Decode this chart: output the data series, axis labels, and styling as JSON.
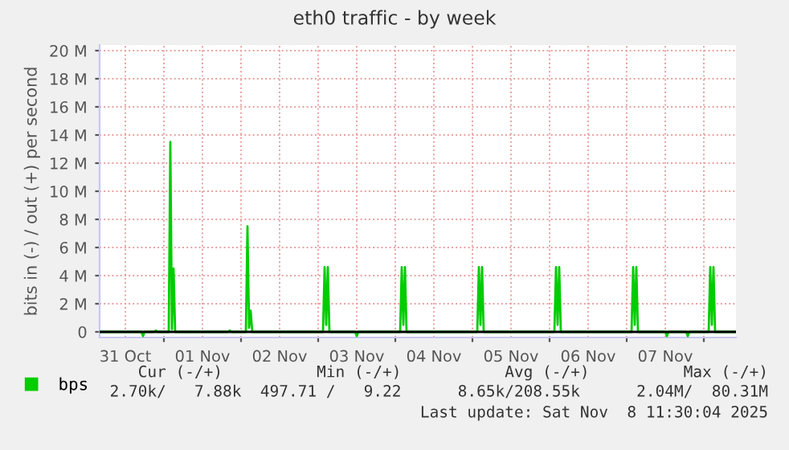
{
  "chart_data": {
    "type": "line",
    "title": "eth0 traffic - by week",
    "ylabel": "bits in (-) / out (+) per second",
    "x": [
      "2025-10-31T04:00",
      "2025-10-31T17:00",
      "2025-10-31T17:30",
      "2025-10-31T18:00",
      "2025-10-31T21:00",
      "2025-10-31T21:30",
      "2025-10-31T22:00",
      "2025-11-01T01:30",
      "2025-11-01T02:00",
      "2025-11-01T02:30",
      "2025-11-01T03:00",
      "2025-11-01T03:30",
      "2025-11-01T20:00",
      "2025-11-01T20:30",
      "2025-11-01T21:00",
      "2025-11-02T01:30",
      "2025-11-02T02:00",
      "2025-11-02T02:30",
      "2025-11-02T03:00",
      "2025-11-02T03:30",
      "2025-11-03T01:30",
      "2025-11-03T02:00",
      "2025-11-03T02:30",
      "2025-11-03T03:00",
      "2025-11-03T03:30",
      "2025-11-03T11:30",
      "2025-11-03T12:00",
      "2025-11-03T12:30",
      "2025-11-04T01:30",
      "2025-11-04T02:00",
      "2025-11-04T02:30",
      "2025-11-04T03:00",
      "2025-11-04T03:30",
      "2025-11-05T01:30",
      "2025-11-05T02:00",
      "2025-11-05T02:30",
      "2025-11-05T03:00",
      "2025-11-05T03:30",
      "2025-11-06T01:30",
      "2025-11-06T02:00",
      "2025-11-06T02:30",
      "2025-11-06T03:00",
      "2025-11-06T03:30",
      "2025-11-07T01:30",
      "2025-11-07T02:00",
      "2025-11-07T02:30",
      "2025-11-07T03:00",
      "2025-11-07T03:30",
      "2025-11-07T12:00",
      "2025-11-07T12:30",
      "2025-11-07T13:00",
      "2025-11-07T18:30",
      "2025-11-07T19:00",
      "2025-11-07T19:30",
      "2025-11-08T01:30",
      "2025-11-08T02:00",
      "2025-11-08T02:30",
      "2025-11-08T03:00",
      "2025-11-08T03:30",
      "2025-11-08T10:00"
    ],
    "series": [
      {
        "name": "bps",
        "color": "#00cc00",
        "values": [
          0,
          0,
          -300000,
          0,
          0,
          100000,
          0,
          0,
          13500000,
          200000,
          4500000,
          0,
          0,
          100000,
          0,
          0,
          7500000,
          300000,
          1500000,
          0,
          0,
          4600000,
          500000,
          4600000,
          0,
          0,
          -300000,
          0,
          0,
          4600000,
          500000,
          4600000,
          0,
          0,
          4600000,
          500000,
          4600000,
          0,
          0,
          4600000,
          500000,
          4600000,
          0,
          0,
          4600000,
          500000,
          4600000,
          0,
          0,
          -300000,
          0,
          0,
          -300000,
          0,
          0,
          4600000,
          500000,
          4600000,
          0,
          0
        ]
      }
    ],
    "xlim": [
      "2025-10-31T04:00",
      "2025-11-08T10:00"
    ],
    "xticks": [
      {
        "value": "2025-10-31T12:00",
        "label": "31 Oct"
      },
      {
        "value": "2025-11-01T00:00",
        "label": null
      },
      {
        "value": "2025-11-01T12:00",
        "label": "01 Nov"
      },
      {
        "value": "2025-11-02T00:00",
        "label": null
      },
      {
        "value": "2025-11-02T12:00",
        "label": "02 Nov"
      },
      {
        "value": "2025-11-03T00:00",
        "label": null
      },
      {
        "value": "2025-11-03T12:00",
        "label": "03 Nov"
      },
      {
        "value": "2025-11-04T00:00",
        "label": null
      },
      {
        "value": "2025-11-04T12:00",
        "label": "04 Nov"
      },
      {
        "value": "2025-11-05T00:00",
        "label": null
      },
      {
        "value": "2025-11-05T12:00",
        "label": "05 Nov"
      },
      {
        "value": "2025-11-06T00:00",
        "label": null
      },
      {
        "value": "2025-11-06T12:00",
        "label": "06 Nov"
      },
      {
        "value": "2025-11-07T00:00",
        "label": null
      },
      {
        "value": "2025-11-07T12:00",
        "label": "07 Nov"
      },
      {
        "value": "2025-11-08T00:00",
        "label": null
      }
    ],
    "ylim": [
      -400000,
      20400000
    ],
    "yticks": [
      0,
      {
        "value": 2000000,
        "label": "2 M"
      },
      {
        "value": 4000000,
        "label": "4 M"
      },
      {
        "value": 6000000,
        "label": "6 M"
      },
      {
        "value": 8000000,
        "label": "8 M"
      },
      {
        "value": 10000000,
        "label": "10 M"
      },
      {
        "value": 12000000,
        "label": "12 M"
      },
      {
        "value": 14000000,
        "label": "14 M"
      },
      {
        "value": 16000000,
        "label": "16 M"
      },
      {
        "value": 18000000,
        "label": "18 M"
      },
      {
        "value": 20000000,
        "label": "20 M"
      }
    ],
    "ref_lines": [
      {
        "axis": "y",
        "value": 0,
        "color": "#000000"
      }
    ],
    "grid": true,
    "legend": "bottom left",
    "annotations": [
      "Cur (-/+)          Min (-/+)           Avg (-/+)          Max (-/+)",
      "2.70k/   7.88k  497.71 /   9.22      8.65k/208.55k      2.04M/  80.31M",
      "Last update: Sat Nov  8 11:30:04 2025"
    ]
  }
}
